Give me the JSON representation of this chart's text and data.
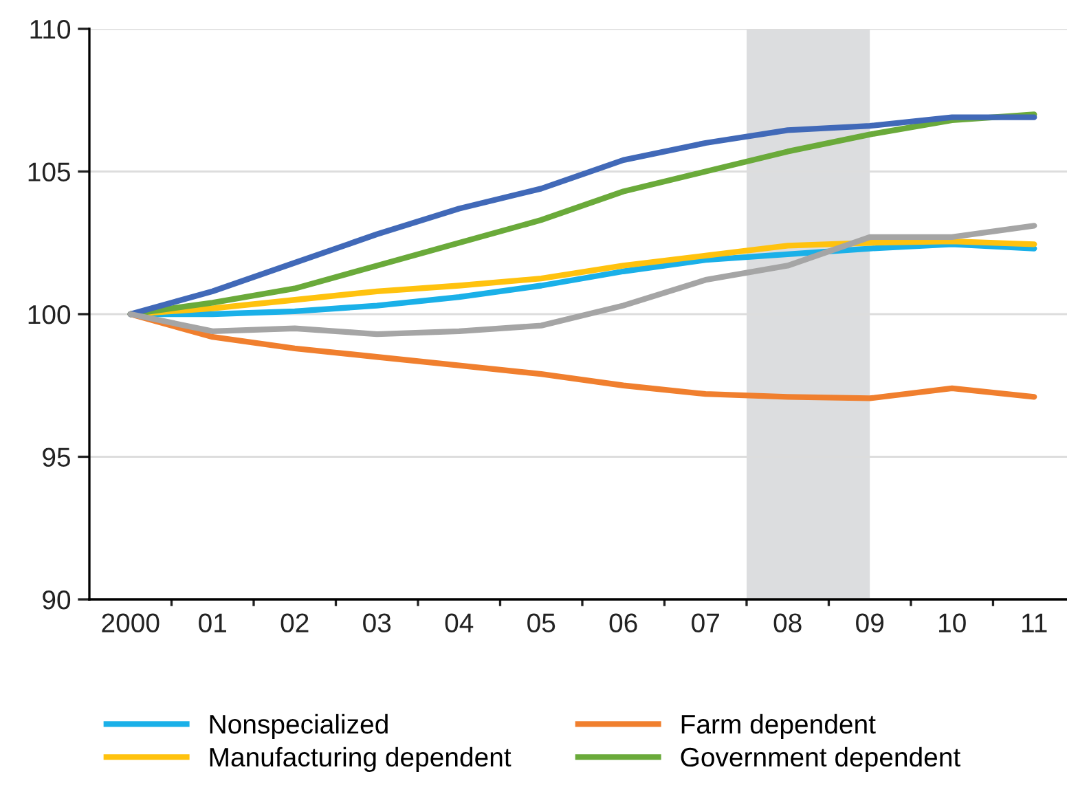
{
  "chart_data": {
    "type": "line",
    "x": [
      2000,
      2001,
      2002,
      2003,
      2004,
      2005,
      2006,
      2007,
      2008,
      2009,
      2010,
      2011
    ],
    "series": [
      {
        "name": "Nonspecialized",
        "color": "#1ab0e8",
        "values": [
          100,
          100.0,
          100.1,
          100.3,
          100.6,
          101.0,
          101.5,
          101.9,
          102.1,
          102.3,
          102.45,
          102.3
        ]
      },
      {
        "name": "Manufacturing dependent",
        "color": "#ffc20e",
        "values": [
          100,
          100.2,
          100.5,
          100.8,
          101.0,
          101.25,
          101.7,
          102.05,
          102.4,
          102.5,
          102.55,
          102.45
        ]
      },
      {
        "name": "Farm dependent",
        "color": "#f07f2e",
        "values": [
          100,
          99.2,
          98.8,
          98.5,
          98.2,
          97.9,
          97.5,
          97.2,
          97.1,
          97.05,
          97.4,
          97.1
        ]
      },
      {
        "name": "Government dependent",
        "color": "#6aaa3a",
        "values": [
          100,
          100.4,
          100.9,
          101.7,
          102.5,
          103.3,
          104.3,
          105.0,
          105.7,
          106.3,
          106.8,
          107.0
        ]
      },
      {
        "color": "#4169b8",
        "values": [
          100,
          100.8,
          101.8,
          102.8,
          103.7,
          104.4,
          105.4,
          106.0,
          106.45,
          106.6,
          106.9,
          106.9
        ]
      },
      {
        "color": "#a5a5a5",
        "values": [
          100,
          99.4,
          99.5,
          99.3,
          99.4,
          99.6,
          100.3,
          101.2,
          101.7,
          102.7,
          102.7,
          103.1
        ]
      }
    ],
    "xlim": [
      1999.5,
      2011.4
    ],
    "xticks": [
      {
        "value": 2000,
        "label": "2000"
      },
      {
        "value": 2001,
        "label": "01"
      },
      {
        "value": 2002,
        "label": "02"
      },
      {
        "value": 2003,
        "label": "03"
      },
      {
        "value": 2004,
        "label": "04"
      },
      {
        "value": 2005,
        "label": "05"
      },
      {
        "value": 2006,
        "label": "06"
      },
      {
        "value": 2007,
        "label": "07"
      },
      {
        "value": 2008,
        "label": "08"
      },
      {
        "value": 2009,
        "label": "09"
      },
      {
        "value": 2010,
        "label": "10"
      },
      {
        "value": 2011,
        "label": "11"
      },
      {
        "value": 2000.5,
        "label": null
      },
      {
        "value": 2001.5,
        "label": null
      },
      {
        "value": 2002.5,
        "label": null
      },
      {
        "value": 2003.5,
        "label": null
      },
      {
        "value": 2004.5,
        "label": null
      },
      {
        "value": 2005.5,
        "label": null
      },
      {
        "value": 2006.5,
        "label": null
      },
      {
        "value": 2007.5,
        "label": null
      },
      {
        "value": 2008.5,
        "label": null
      },
      {
        "value": 2009.5,
        "label": null
      },
      {
        "value": 2010.5,
        "label": null
      }
    ],
    "ylim": [
      90,
      110
    ],
    "yticks": [
      90,
      95,
      100,
      105,
      110
    ],
    "bands": [
      {
        "axis": "x",
        "from": 2007.5,
        "to": 2009,
        "color": "#dcdddf"
      }
    ],
    "grid": "y",
    "legend": "bottom",
    "marker": "none",
    "line_style": "solid"
  }
}
